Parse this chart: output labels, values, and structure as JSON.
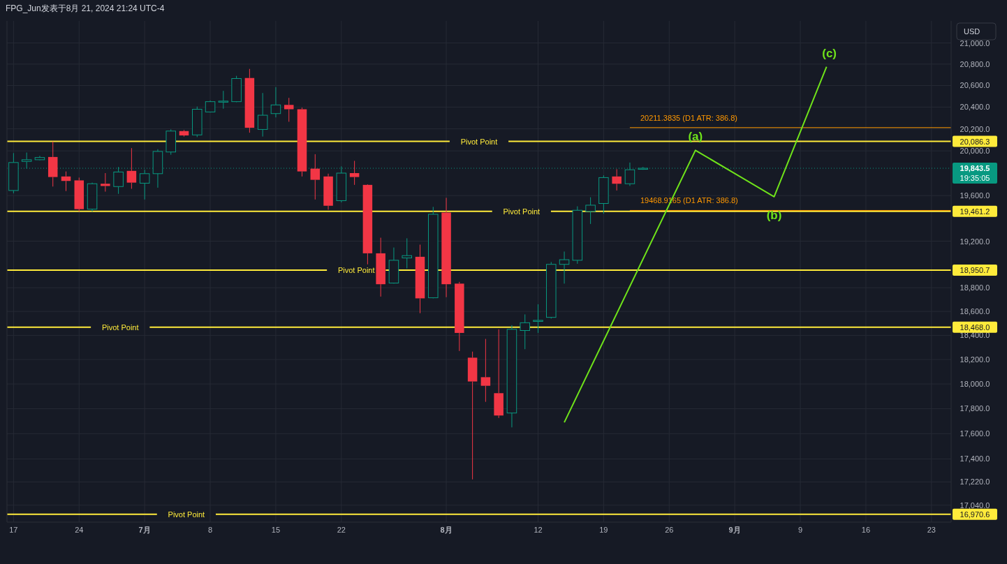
{
  "chart_data": {
    "type": "candlestick",
    "title": "FPG_Jun发表于8月 21, 2024 21:24 UTC-4",
    "ylabel": "USD",
    "categories": [
      "17",
      null,
      null,
      null,
      null,
      "24",
      null,
      null,
      null,
      null,
      "7月",
      null,
      null,
      null,
      null,
      "8",
      null,
      null,
      null,
      null,
      "15",
      null,
      null,
      null,
      null,
      "22",
      null,
      null,
      null,
      null,
      null,
      null,
      null,
      "8月",
      null,
      null,
      null,
      null,
      null,
      null,
      "12",
      null,
      null,
      null,
      null,
      "19",
      null,
      null,
      null,
      null,
      "26",
      null,
      null,
      null,
      null,
      "9月",
      null,
      null,
      null,
      null,
      "9",
      null,
      null,
      null,
      null,
      "16",
      null,
      null,
      null,
      null,
      "23",
      null
    ],
    "log": "y",
    "ylim": [
      16910,
      21210
    ],
    "yticks": [
      {
        "value": 17040,
        "label": "17,040.0"
      },
      {
        "value": 17220,
        "label": "17,220.0"
      },
      {
        "value": 17400,
        "label": "17,400.0"
      },
      {
        "value": 17600,
        "label": "17,600.0"
      },
      {
        "value": 17800,
        "label": "17,800.0"
      },
      {
        "value": 18000,
        "label": "18,000.0"
      },
      {
        "value": 18200,
        "label": "18,200.0"
      },
      {
        "value": 18400,
        "label": "18,400.0"
      },
      {
        "value": 18600,
        "label": "18,600.0"
      },
      {
        "value": 18800,
        "label": "18,800.0"
      },
      {
        "value": 19200,
        "label": "19,200.0"
      },
      {
        "value": 19600,
        "label": "19,600.0"
      },
      {
        "value": 20000,
        "label": "20,000.0"
      },
      {
        "value": 20200,
        "label": "20,200.0"
      },
      {
        "value": 20400,
        "label": "20,400.0"
      },
      {
        "value": 20600,
        "label": "20,600.0"
      },
      {
        "value": 20800,
        "label": "20,800.0"
      },
      {
        "value": 21000,
        "label": "21,000.0"
      }
    ],
    "grid": true,
    "series": [
      {
        "type": "candlestick",
        "ohlc": [
          [
            19645,
            19980,
            19620,
            19895
          ],
          [
            19905,
            19985,
            19840,
            19920
          ],
          [
            19920,
            19955,
            19915,
            19940
          ],
          [
            19945,
            20085,
            19680,
            19765
          ],
          [
            19770,
            19815,
            19640,
            19730
          ],
          [
            19735,
            19760,
            19460,
            19480
          ],
          [
            19480,
            19715,
            19460,
            19705
          ],
          [
            19705,
            19800,
            19635,
            19685
          ],
          [
            19680,
            19855,
            19615,
            19810
          ],
          [
            19820,
            20025,
            19660,
            19715
          ],
          [
            19710,
            19830,
            19565,
            19795
          ],
          [
            19795,
            20015,
            19670,
            19995
          ],
          [
            19990,
            20195,
            19965,
            20180
          ],
          [
            20180,
            20190,
            20130,
            20140
          ],
          [
            20145,
            20405,
            20125,
            20380
          ],
          [
            20355,
            20460,
            20350,
            20450
          ],
          [
            20450,
            20550,
            20385,
            20455
          ],
          [
            20450,
            20690,
            20445,
            20665
          ],
          [
            20670,
            20755,
            20165,
            20210
          ],
          [
            20195,
            20530,
            20130,
            20325
          ],
          [
            20340,
            20585,
            20305,
            20420
          ],
          [
            20420,
            20485,
            20265,
            20380
          ],
          [
            20380,
            20395,
            19770,
            19815
          ],
          [
            19840,
            19970,
            19565,
            19740
          ],
          [
            19770,
            19795,
            19475,
            19510
          ],
          [
            19555,
            19860,
            19540,
            19800
          ],
          [
            19800,
            19910,
            19695,
            19765
          ],
          [
            19695,
            19700,
            19000,
            19095
          ],
          [
            19095,
            19230,
            18725,
            18830
          ],
          [
            18840,
            19145,
            18835,
            19035
          ],
          [
            19055,
            19225,
            18965,
            19075
          ],
          [
            19065,
            19170,
            18585,
            18710
          ],
          [
            18715,
            19500,
            18710,
            19435
          ],
          [
            19450,
            19580,
            18720,
            18830
          ],
          [
            18835,
            18850,
            18270,
            18420
          ],
          [
            18215,
            18265,
            17240,
            18020
          ],
          [
            18055,
            18370,
            17855,
            17985
          ],
          [
            17925,
            18450,
            17725,
            17745
          ],
          [
            17765,
            18485,
            17650,
            18450
          ],
          [
            18440,
            18575,
            18285,
            18505
          ],
          [
            18520,
            18660,
            18420,
            18525
          ],
          [
            18550,
            19020,
            18540,
            19000
          ],
          [
            19000,
            19110,
            18835,
            19040
          ],
          [
            19035,
            19505,
            19005,
            19470
          ],
          [
            19460,
            19585,
            19350,
            19515
          ],
          [
            19530,
            19780,
            19440,
            19760
          ],
          [
            19770,
            19835,
            19645,
            19705
          ],
          [
            19705,
            19895,
            19685,
            19830
          ],
          [
            19835,
            19855,
            19830,
            19843.5
          ],
          null,
          null,
          null,
          null,
          null,
          null,
          null,
          null,
          null,
          null,
          null,
          null,
          null,
          null,
          null,
          null,
          null,
          null,
          null,
          null,
          null,
          null,
          null
        ],
        "colors": [
          "#089981",
          "#089981",
          "#089981",
          "#f23645",
          "#f23645",
          "#f23645",
          "#089981",
          "#f23645",
          "#089981",
          "#f23645",
          "#089981",
          "#089981",
          "#089981",
          "#f23645",
          "#089981",
          "#089981",
          "#089981",
          "#089981",
          "#f23645",
          "#089981",
          "#089981",
          "#f23645",
          "#f23645",
          "#f23645",
          "#f23645",
          "#089981",
          "#f23645",
          "#f23645",
          "#f23645",
          "#089981",
          "#089981",
          "#f23645",
          "#089981",
          "#f23645",
          "#f23645",
          "#f23645",
          "#f23645",
          "#f23645",
          "#089981",
          "#089981",
          "#089981",
          "#089981",
          "#089981",
          "#089981",
          "#089981",
          "#089981",
          "#f23645",
          "#089981",
          "#089981",
          null,
          null,
          null,
          null,
          null,
          null,
          null,
          null,
          null,
          null,
          null,
          null,
          null,
          null,
          null,
          null,
          null,
          null,
          null,
          null,
          null,
          null,
          null
        ]
      },
      {
        "type": "line",
        "color": "#6fe31a",
        "values": [
          null,
          null,
          null,
          null,
          null,
          null,
          null,
          null,
          null,
          null,
          null,
          null,
          null,
          null,
          null,
          null,
          null,
          null,
          null,
          null,
          null,
          null,
          null,
          null,
          null,
          null,
          null,
          null,
          null,
          null,
          null,
          null,
          null,
          null,
          null,
          null,
          null,
          null,
          null,
          null,
          null,
          null,
          17690,
          null,
          null,
          null,
          null,
          null,
          null,
          null,
          null,
          null,
          20005,
          null,
          null,
          null,
          null,
          null,
          19590,
          null,
          null,
          null,
          20775,
          null,
          null,
          null,
          null,
          null,
          null,
          null,
          null,
          null
        ]
      }
    ],
    "ref_lines": [
      {
        "axis": "y",
        "value": 20086.3,
        "label": "Pivot Point",
        "color": "#ffeb3b"
      },
      {
        "axis": "y",
        "value": 19461.2,
        "label": "Pivot Point",
        "color": "#ffeb3b"
      },
      {
        "axis": "y",
        "value": 18950.7,
        "label": "Pivot Point",
        "color": "#ffeb3b"
      },
      {
        "axis": "y",
        "value": 18468.0,
        "label": "Pivot Point",
        "color": "#ffeb3b"
      },
      {
        "axis": "y",
        "value": 16970.6,
        "label": "Pivot Point",
        "color": "#ffeb3b"
      },
      {
        "axis": "y",
        "value": 20211.3835,
        "label": "20211.3835 (D1 ATR: 386.8)",
        "color": "#ff9800",
        "line_style": "solid"
      },
      {
        "axis": "y",
        "value": 19468.9165,
        "label": "19468.9165 (D1 ATR: 386.8)",
        "color": "#ff9800",
        "line_style": "solid"
      },
      {
        "axis": "y",
        "value": 19843.5,
        "color": "#089981",
        "line_style": "dotted"
      }
    ],
    "annotations": [
      "(a)",
      "(b)",
      "(c)",
      "20,086.3",
      "19,461.2",
      "18,950.7",
      "18,468.0",
      "16,970.6",
      "19,843.5",
      "19:35:05"
    ]
  }
}
